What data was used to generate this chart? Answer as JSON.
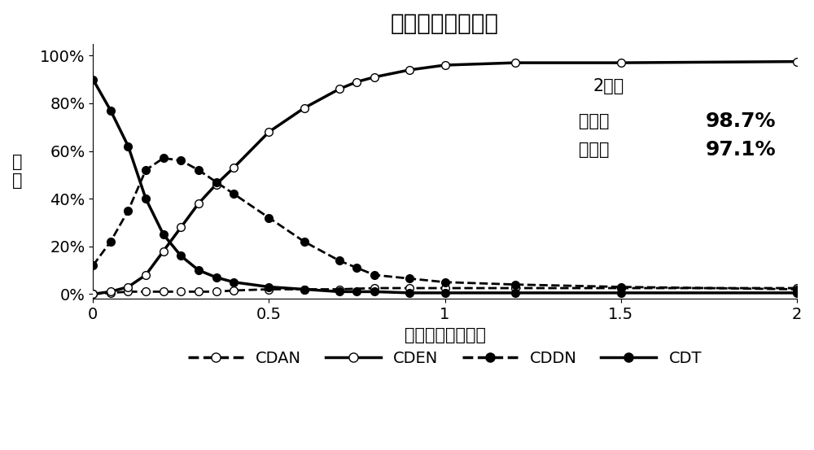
{
  "title": "催化剂再利用反应",
  "xlabel": "反应时间（小时）",
  "ylabel": "组\n分",
  "annotation_time": "2小时",
  "annotation_conversion": "转化率",
  "annotation_conversion_val": "98.7%",
  "annotation_selectivity": "选择性",
  "annotation_selectivity_val": "97.1%",
  "xlim": [
    0,
    2.0
  ],
  "ylim": [
    -0.02,
    1.05
  ],
  "yticks": [
    0.0,
    0.2,
    0.4,
    0.6,
    0.8,
    1.0
  ],
  "ytick_labels": [
    "0%",
    "20%",
    "40%",
    "60%",
    "80%",
    "100%"
  ],
  "xticks": [
    0,
    0.5,
    1.0,
    1.5,
    2.0
  ],
  "xtick_labels": [
    "0",
    "0.5",
    "1",
    "1.5",
    "2"
  ],
  "CDAN": {
    "x": [
      0,
      0.05,
      0.1,
      0.15,
      0.2,
      0.25,
      0.3,
      0.35,
      0.4,
      0.5,
      0.6,
      0.7,
      0.8,
      0.9,
      1.0,
      1.2,
      1.5,
      2.0
    ],
    "y": [
      0.0,
      0.005,
      0.01,
      0.01,
      0.01,
      0.01,
      0.01,
      0.01,
      0.015,
      0.02,
      0.02,
      0.02,
      0.025,
      0.025,
      0.025,
      0.025,
      0.025,
      0.025
    ],
    "linestyle": "dashed",
    "marker": "o",
    "color": "#000000",
    "linewidth": 2.0,
    "markersize": 7,
    "markerfacecolor": "white"
  },
  "CDEN": {
    "x": [
      0,
      0.05,
      0.1,
      0.15,
      0.2,
      0.25,
      0.3,
      0.35,
      0.4,
      0.5,
      0.6,
      0.7,
      0.75,
      0.8,
      0.9,
      1.0,
      1.2,
      1.5,
      2.0
    ],
    "y": [
      0.0,
      0.01,
      0.03,
      0.08,
      0.18,
      0.28,
      0.38,
      0.46,
      0.53,
      0.68,
      0.78,
      0.86,
      0.89,
      0.91,
      0.94,
      0.96,
      0.97,
      0.97,
      0.975
    ],
    "linestyle": "solid",
    "marker": "o",
    "color": "#000000",
    "linewidth": 2.5,
    "markersize": 7,
    "markerfacecolor": "white"
  },
  "CDDN": {
    "x": [
      0,
      0.05,
      0.1,
      0.15,
      0.2,
      0.25,
      0.3,
      0.35,
      0.4,
      0.5,
      0.6,
      0.7,
      0.75,
      0.8,
      0.9,
      1.0,
      1.2,
      1.5,
      2.0
    ],
    "y": [
      0.12,
      0.22,
      0.35,
      0.52,
      0.57,
      0.56,
      0.52,
      0.47,
      0.42,
      0.32,
      0.22,
      0.14,
      0.11,
      0.08,
      0.065,
      0.05,
      0.04,
      0.03,
      0.02
    ],
    "linestyle": "dashed",
    "marker": "o",
    "color": "#000000",
    "linewidth": 2.0,
    "markersize": 7,
    "markerfacecolor": "black"
  },
  "CDT": {
    "x": [
      0,
      0.05,
      0.1,
      0.15,
      0.2,
      0.25,
      0.3,
      0.35,
      0.4,
      0.5,
      0.6,
      0.7,
      0.75,
      0.8,
      0.9,
      1.0,
      1.2,
      1.5,
      2.0
    ],
    "y": [
      0.9,
      0.77,
      0.62,
      0.4,
      0.25,
      0.16,
      0.1,
      0.07,
      0.05,
      0.03,
      0.02,
      0.01,
      0.01,
      0.01,
      0.005,
      0.005,
      0.005,
      0.005,
      0.005
    ],
    "linestyle": "solid",
    "marker": "o",
    "color": "#000000",
    "linewidth": 2.5,
    "markersize": 7,
    "markerfacecolor": "black"
  },
  "legend_labels": [
    "CDAN",
    "CDEN",
    "CDDN",
    "CDT"
  ],
  "background_color": "#ffffff",
  "title_fontsize": 20,
  "label_fontsize": 15,
  "tick_fontsize": 14,
  "annotation_fontsize": 15,
  "annotation_val_fontsize": 18
}
